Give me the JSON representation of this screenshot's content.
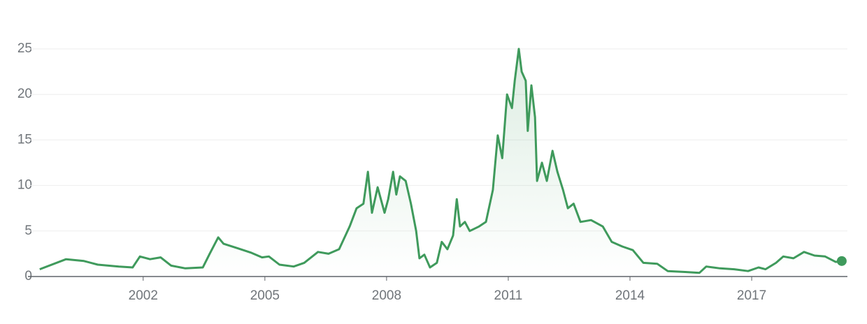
{
  "chart_data": {
    "type": "line",
    "x": [
      1999.45,
      2000.1,
      2000.54,
      2000.88,
      2001.4,
      2001.74,
      2001.92,
      2002.17,
      2002.43,
      2002.69,
      2003.04,
      2003.47,
      2003.64,
      2003.85,
      2003.98,
      2004.33,
      2004.67,
      2004.93,
      2005.1,
      2005.36,
      2005.71,
      2005.97,
      2006.31,
      2006.57,
      2006.83,
      2007.09,
      2007.26,
      2007.43,
      2007.54,
      2007.64,
      2007.78,
      2007.95,
      2008.04,
      2008.16,
      2008.24,
      2008.33,
      2008.47,
      2008.6,
      2008.73,
      2008.81,
      2008.93,
      2009.07,
      2009.24,
      2009.36,
      2009.5,
      2009.64,
      2009.73,
      2009.81,
      2009.93,
      2010.05,
      2010.28,
      2010.45,
      2010.62,
      2010.74,
      2010.85,
      2010.97,
      2011.09,
      2011.16,
      2011.26,
      2011.33,
      2011.43,
      2011.48,
      2011.57,
      2011.66,
      2011.71,
      2011.83,
      2011.95,
      2012.09,
      2012.21,
      2012.35,
      2012.47,
      2012.61,
      2012.78,
      2013.04,
      2013.33,
      2013.55,
      2013.81,
      2014.07,
      2014.33,
      2014.67,
      2014.93,
      2015.36,
      2015.71,
      2015.88,
      2016.22,
      2016.57,
      2016.91,
      2017.17,
      2017.34,
      2017.6,
      2017.78,
      2018.03,
      2018.29,
      2018.55,
      2018.81,
      2019.07,
      2019.22
    ],
    "series": [
      {
        "color": "#3f9a5c",
        "values": [
          0.8,
          1.9,
          1.7,
          1.3,
          1.1,
          1.0,
          2.2,
          1.9,
          2.1,
          1.2,
          0.9,
          1.0,
          2.5,
          4.3,
          3.6,
          3.1,
          2.6,
          2.1,
          2.2,
          1.3,
          1.1,
          1.5,
          2.7,
          2.5,
          3.0,
          5.5,
          7.5,
          8.0,
          11.5,
          7.0,
          9.8,
          7.0,
          8.5,
          11.5,
          9.0,
          11.0,
          10.5,
          8.0,
          5.0,
          2.0,
          2.4,
          1.0,
          1.5,
          3.8,
          3.0,
          4.5,
          8.5,
          5.5,
          6.0,
          5.0,
          5.5,
          6.0,
          9.5,
          15.5,
          13.0,
          20,
          18.5,
          21.5,
          25.0,
          22.5,
          21.5,
          16.0,
          21.0,
          17.5,
          10.5,
          12.5,
          10.5,
          13.8,
          11.5,
          9.5,
          7.5,
          8.0,
          6.0,
          6.2,
          5.5,
          3.8,
          3.3,
          2.9,
          1.5,
          1.4,
          0.6,
          0.5,
          0.4,
          1.1,
          0.9,
          0.8,
          0.6,
          1.0,
          0.8,
          1.5,
          2.2,
          2.0,
          2.7,
          2.3,
          2.2,
          1.6,
          1.7
        ]
      }
    ],
    "xlim": [
      1999.16,
      2019.36
    ],
    "xticks": [
      2002,
      2005,
      2008,
      2011,
      2014,
      2017
    ],
    "ylim": [
      0,
      25
    ],
    "yticks": [
      0,
      5,
      10,
      15,
      20,
      25
    ],
    "grid": true
  }
}
